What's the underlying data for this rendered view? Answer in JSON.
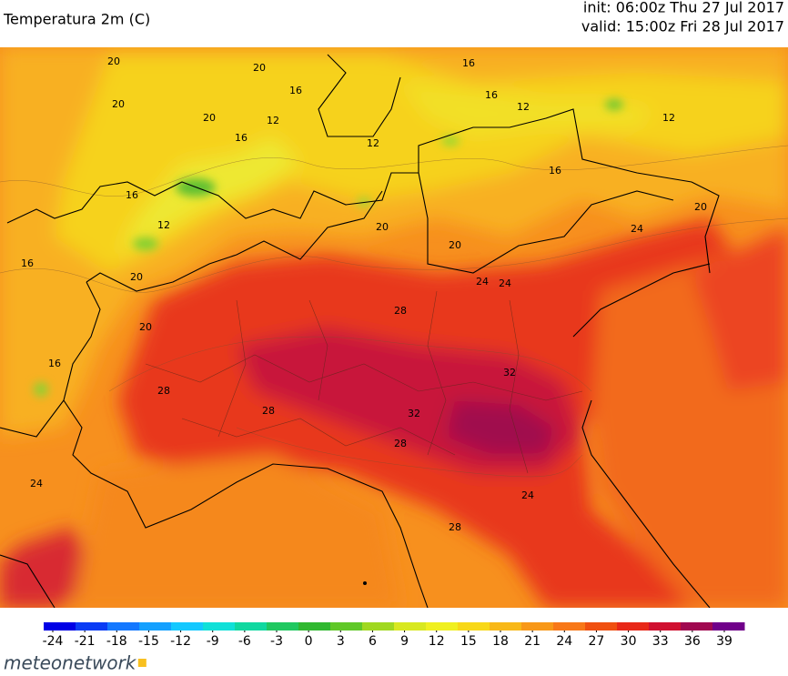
{
  "header": {
    "title": "Temperatura 2m (C)",
    "init": "init: 06:00z Thu 27 Jul 2017",
    "valid": "valid: 15:00z Fri 28 Jul 2017"
  },
  "map": {
    "contour_labels": [
      "20",
      "20",
      "20",
      "20",
      "16",
      "12",
      "16",
      "16",
      "12",
      "20",
      "20",
      "16",
      "16",
      "12",
      "12",
      "24",
      "24",
      "28",
      "32",
      "28",
      "28",
      "32",
      "28",
      "24",
      "28",
      "24",
      "20",
      "20",
      "20",
      "16",
      "12",
      "16",
      "24",
      "16"
    ]
  },
  "colorbar": {
    "ticks": [
      -24,
      -21,
      -18,
      -15,
      -12,
      -9,
      -6,
      -3,
      0,
      3,
      6,
      9,
      12,
      15,
      18,
      21,
      24,
      27,
      30,
      33,
      36,
      39
    ],
    "colors": [
      "#0000e6",
      "#0a3cf5",
      "#1478ff",
      "#14a0ff",
      "#14c8ff",
      "#10e0d8",
      "#10d8a0",
      "#20c860",
      "#30b830",
      "#60c828",
      "#a0d820",
      "#d8e820",
      "#f0f020",
      "#f8d818",
      "#f8b818",
      "#f89818",
      "#f87818",
      "#f05010",
      "#e82818",
      "#d01030",
      "#a00850",
      "#70008a"
    ]
  },
  "logo": "meteonetwork"
}
